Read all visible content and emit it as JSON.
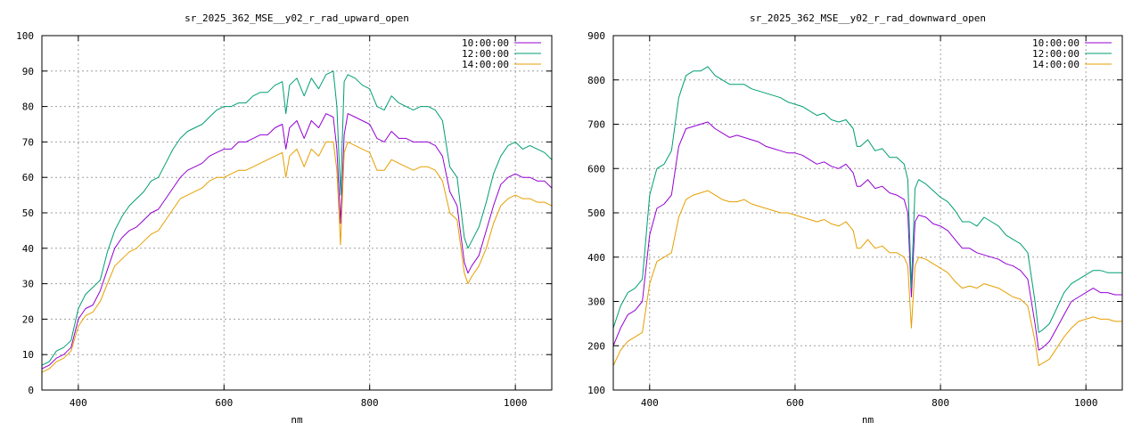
{
  "chart_data": [
    {
      "type": "line",
      "title": "sr_2025_362_MSE__y02_r_rad_upward_open",
      "xlabel": "nm",
      "ylabel": "",
      "xlim": [
        350,
        1050
      ],
      "ylim": [
        0,
        100
      ],
      "xticks": [
        400,
        600,
        800,
        1000
      ],
      "yticks": [
        0,
        10,
        20,
        30,
        40,
        50,
        60,
        70,
        80,
        90,
        100
      ],
      "grid": true,
      "legend": "top-right",
      "x": [
        350,
        360,
        370,
        380,
        390,
        400,
        410,
        420,
        430,
        440,
        450,
        460,
        470,
        480,
        490,
        500,
        510,
        520,
        530,
        540,
        550,
        560,
        570,
        580,
        590,
        600,
        610,
        620,
        630,
        640,
        650,
        660,
        670,
        680,
        685,
        690,
        700,
        710,
        720,
        730,
        740,
        750,
        755,
        760,
        765,
        770,
        780,
        790,
        800,
        810,
        820,
        830,
        840,
        850,
        860,
        870,
        880,
        890,
        900,
        910,
        920,
        930,
        935,
        940,
        950,
        960,
        970,
        980,
        990,
        1000,
        1010,
        1020,
        1030,
        1040,
        1050
      ],
      "series": [
        {
          "name": "10:00:00",
          "color": "#9400d3",
          "values": [
            6,
            7,
            9,
            10,
            12,
            20,
            23,
            24,
            28,
            34,
            40,
            43,
            45,
            46,
            48,
            50,
            51,
            54,
            57,
            60,
            62,
            63,
            64,
            66,
            67,
            68,
            68,
            70,
            70,
            71,
            72,
            72,
            74,
            75,
            68,
            74,
            76,
            71,
            76,
            74,
            78,
            77,
            68,
            47,
            72,
            78,
            77,
            76,
            75,
            71,
            70,
            73,
            71,
            71,
            70,
            70,
            70,
            69,
            66,
            56,
            52,
            36,
            33,
            35,
            38,
            45,
            52,
            58,
            60,
            61,
            60,
            60,
            59,
            59,
            57
          ]
        },
        {
          "name": "12:00:00",
          "color": "#009e73",
          "values": [
            7,
            8,
            11,
            12,
            14,
            23,
            27,
            29,
            31,
            39,
            45,
            49,
            52,
            54,
            56,
            59,
            60,
            64,
            68,
            71,
            73,
            74,
            75,
            77,
            79,
            80,
            80,
            81,
            81,
            83,
            84,
            84,
            86,
            87,
            78,
            86,
            88,
            83,
            88,
            85,
            89,
            90,
            80,
            55,
            87,
            89,
            88,
            86,
            85,
            80,
            79,
            83,
            81,
            80,
            79,
            80,
            80,
            79,
            76,
            63,
            60,
            43,
            40,
            42,
            46,
            53,
            61,
            66,
            69,
            70,
            68,
            69,
            68,
            67,
            65
          ]
        },
        {
          "name": "14:00:00",
          "color": "#e69f00",
          "values": [
            5,
            6,
            8,
            9,
            11,
            18,
            21,
            22,
            25,
            30,
            35,
            37,
            39,
            40,
            42,
            44,
            45,
            48,
            51,
            54,
            55,
            56,
            57,
            59,
            60,
            60,
            61,
            62,
            62,
            63,
            64,
            65,
            66,
            67,
            60,
            66,
            68,
            63,
            68,
            66,
            70,
            70,
            62,
            41,
            67,
            70,
            69,
            68,
            67,
            62,
            62,
            65,
            64,
            63,
            62,
            63,
            63,
            62,
            59,
            50,
            48,
            33,
            30,
            32,
            35,
            40,
            47,
            52,
            54,
            55,
            54,
            54,
            53,
            53,
            52
          ]
        }
      ]
    },
    {
      "type": "line",
      "title": "sr_2025_362_MSE__y02_r_rad_downward_open",
      "xlabel": "nm",
      "ylabel": "",
      "xlim": [
        350,
        1050
      ],
      "ylim": [
        100,
        900
      ],
      "xticks": [
        400,
        600,
        800,
        1000
      ],
      "yticks": [
        100,
        200,
        300,
        400,
        500,
        600,
        700,
        800,
        900
      ],
      "grid": true,
      "legend": "top-right",
      "x": [
        350,
        360,
        370,
        380,
        390,
        400,
        410,
        420,
        430,
        440,
        450,
        460,
        470,
        480,
        490,
        500,
        510,
        520,
        530,
        540,
        550,
        560,
        570,
        580,
        590,
        600,
        610,
        620,
        630,
        640,
        650,
        660,
        670,
        680,
        685,
        690,
        700,
        710,
        720,
        730,
        740,
        750,
        755,
        760,
        765,
        770,
        780,
        790,
        800,
        810,
        820,
        830,
        840,
        850,
        860,
        870,
        880,
        890,
        900,
        910,
        920,
        930,
        935,
        940,
        950,
        960,
        970,
        980,
        990,
        1000,
        1010,
        1020,
        1030,
        1040,
        1050
      ],
      "series": [
        {
          "name": "10:00:00",
          "color": "#9400d3",
          "values": [
            200,
            240,
            270,
            280,
            300,
            450,
            510,
            520,
            540,
            650,
            690,
            695,
            700,
            705,
            690,
            680,
            670,
            675,
            670,
            665,
            660,
            650,
            645,
            640,
            635,
            635,
            630,
            620,
            610,
            615,
            605,
            600,
            610,
            590,
            560,
            560,
            575,
            555,
            560,
            545,
            540,
            530,
            500,
            310,
            480,
            495,
            490,
            475,
            470,
            460,
            440,
            420,
            420,
            410,
            405,
            400,
            395,
            385,
            380,
            370,
            350,
            250,
            190,
            195,
            210,
            240,
            270,
            300,
            310,
            320,
            330,
            320,
            320,
            315,
            315
          ]
        },
        {
          "name": "12:00:00",
          "color": "#009e73",
          "values": [
            240,
            290,
            320,
            330,
            350,
            540,
            600,
            610,
            640,
            760,
            810,
            820,
            820,
            830,
            810,
            800,
            790,
            790,
            790,
            780,
            775,
            770,
            765,
            760,
            750,
            745,
            740,
            730,
            720,
            725,
            710,
            705,
            710,
            690,
            650,
            650,
            665,
            640,
            645,
            625,
            625,
            610,
            575,
            330,
            555,
            575,
            565,
            550,
            535,
            525,
            505,
            480,
            480,
            470,
            490,
            480,
            470,
            450,
            440,
            430,
            410,
            300,
            230,
            235,
            250,
            285,
            320,
            340,
            350,
            360,
            370,
            370,
            365,
            365,
            365
          ]
        },
        {
          "name": "14:00:00",
          "color": "#e69f00",
          "values": [
            155,
            190,
            210,
            220,
            230,
            340,
            390,
            400,
            410,
            490,
            530,
            540,
            545,
            550,
            540,
            530,
            525,
            525,
            530,
            520,
            515,
            510,
            505,
            500,
            500,
            495,
            490,
            485,
            480,
            485,
            475,
            470,
            480,
            460,
            420,
            420,
            440,
            420,
            425,
            410,
            410,
            400,
            380,
            240,
            380,
            400,
            395,
            385,
            375,
            365,
            345,
            330,
            335,
            330,
            340,
            335,
            330,
            320,
            310,
            305,
            290,
            210,
            155,
            160,
            170,
            195,
            220,
            240,
            255,
            260,
            265,
            260,
            260,
            255,
            255
          ]
        }
      ]
    }
  ]
}
